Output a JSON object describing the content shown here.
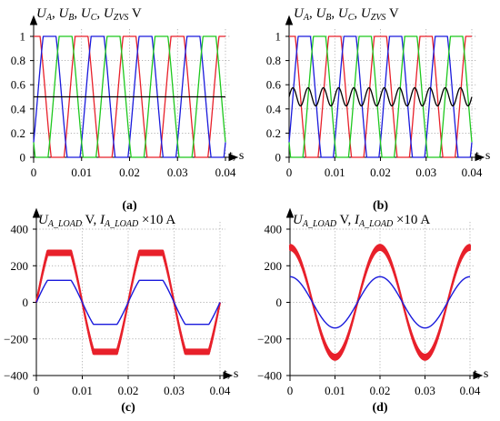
{
  "figure": {
    "panels": [
      "a",
      "b",
      "c",
      "d"
    ]
  },
  "chart_data": [
    {
      "id": "a",
      "type": "line",
      "title_parts": [
        [
          "U",
          "A",
          ", "
        ],
        [
          "U",
          "B",
          ", "
        ],
        [
          "U",
          "C",
          ", "
        ],
        [
          "U",
          "ZVS",
          " V"
        ]
      ],
      "xlabel": "t, s",
      "panel_label": "(a)",
      "xlim": [
        0,
        0.04
      ],
      "ylim": [
        0,
        1
      ],
      "xticks": [
        0,
        0.01,
        0.02,
        0.03,
        0.04
      ],
      "xtick_labels": [
        "0",
        "0.01",
        "0.02",
        "0.03",
        "0.04"
      ],
      "yticks": [
        0,
        0.2,
        0.4,
        0.6,
        0.8,
        1
      ],
      "ytick_labels": [
        "0",
        "0.2",
        "0.4",
        "0.6",
        "0.8",
        "1"
      ],
      "grid": true,
      "series": [
        {
          "color": "#e8202a",
          "kind": "clipped_sine",
          "amp": 0.75,
          "offset": 0.5,
          "freq": 100,
          "phase_deg": 90,
          "clip": [
            0,
            1
          ]
        },
        {
          "color": "#1a1adc",
          "kind": "clipped_sine",
          "amp": 0.75,
          "offset": 0.5,
          "freq": 100,
          "phase_deg": -30,
          "clip": [
            0,
            1
          ]
        },
        {
          "color": "#1ec81e",
          "kind": "clipped_sine",
          "amp": 0.75,
          "offset": 0.5,
          "freq": 100,
          "phase_deg": 210,
          "clip": [
            0,
            1
          ]
        },
        {
          "color": "#000000",
          "kind": "constant",
          "value": 0.5
        }
      ]
    },
    {
      "id": "b",
      "type": "line",
      "title_parts": [
        [
          "U",
          "A",
          ", "
        ],
        [
          "U",
          "B",
          ", "
        ],
        [
          "U",
          "C",
          ", "
        ],
        [
          "U",
          "ZVS",
          " V"
        ]
      ],
      "xlabel": "t, s",
      "panel_label": "(b)",
      "xlim": [
        0,
        0.04
      ],
      "ylim": [
        0,
        1
      ],
      "xticks": [
        0,
        0.01,
        0.02,
        0.03,
        0.04
      ],
      "xtick_labels": [
        "0",
        "0.01",
        "0.02",
        "0.03",
        "0.04"
      ],
      "yticks": [
        0,
        0.2,
        0.4,
        0.6,
        0.8,
        1
      ],
      "ytick_labels": [
        "0",
        "0.2",
        "0.4",
        "0.6",
        "0.8",
        "1"
      ],
      "grid": true,
      "series": [
        {
          "color": "#e8202a",
          "kind": "clipped_sine",
          "amp": 0.75,
          "offset": 0.5,
          "freq": 100,
          "phase_deg": 90,
          "clip": [
            0,
            1
          ]
        },
        {
          "color": "#1a1adc",
          "kind": "clipped_sine",
          "amp": 0.75,
          "offset": 0.5,
          "freq": 100,
          "phase_deg": -30,
          "clip": [
            0,
            1
          ]
        },
        {
          "color": "#1ec81e",
          "kind": "clipped_sine",
          "amp": 0.75,
          "offset": 0.5,
          "freq": 100,
          "phase_deg": 210,
          "clip": [
            0,
            1
          ]
        },
        {
          "color": "#000000",
          "kind": "sine",
          "amp": 0.075,
          "offset": 0.5,
          "freq": 300,
          "phase_deg": 0
        }
      ]
    },
    {
      "id": "c",
      "type": "line",
      "title_parts": [
        [
          "U",
          "A_LOAD",
          " V, "
        ],
        [
          "I",
          "A_LOAD",
          " ×10 A"
        ]
      ],
      "xlabel": "t, s",
      "panel_label": "(c)",
      "xlim": [
        0,
        0.04
      ],
      "ylim": [
        -400,
        400
      ],
      "xticks": [
        0,
        0.01,
        0.02,
        0.03,
        0.04
      ],
      "xtick_labels": [
        "0",
        "0.01",
        "0.02",
        "0.03",
        "0.04"
      ],
      "yticks": [
        -400,
        -200,
        0,
        200,
        400
      ],
      "ytick_labels": [
        "−400",
        "−200",
        "0",
        "200",
        "400"
      ],
      "grid": true,
      "series": [
        {
          "color": "#e8202a",
          "kind": "flat_sine",
          "peak": 270,
          "freq": 50,
          "phase_deg": 0,
          "ripple": 12,
          "width": 2.2
        },
        {
          "color": "#1a1adc",
          "kind": "flat_sine",
          "peak": 120,
          "freq": 50,
          "phase_deg": 0,
          "ripple": 0,
          "width": 1.4
        }
      ]
    },
    {
      "id": "d",
      "type": "line",
      "title_parts": [
        [
          "U",
          "A_LOAD",
          " V, "
        ],
        [
          "I",
          "A_LOAD",
          " ×10 A"
        ]
      ],
      "xlabel": "t, s",
      "panel_label": "(d)",
      "xlim": [
        0,
        0.04
      ],
      "ylim": [
        -400,
        400
      ],
      "xticks": [
        0,
        0.01,
        0.02,
        0.03,
        0.04
      ],
      "xtick_labels": [
        "0",
        "0.01",
        "0.02",
        "0.03",
        "0.04"
      ],
      "yticks": [
        -400,
        -200,
        0,
        200,
        400
      ],
      "ytick_labels": [
        "−400",
        "−200",
        "0",
        "200",
        "400"
      ],
      "grid": true,
      "series": [
        {
          "color": "#e8202a",
          "kind": "sine",
          "amp": 300,
          "offset": 0,
          "freq": 50,
          "phase_deg": 90,
          "ripple": 14,
          "width": 2.2
        },
        {
          "color": "#1a1adc",
          "kind": "sine",
          "amp": 140,
          "offset": 0,
          "freq": 50,
          "phase_deg": 90,
          "ripple": 0,
          "width": 1.4
        }
      ]
    }
  ]
}
